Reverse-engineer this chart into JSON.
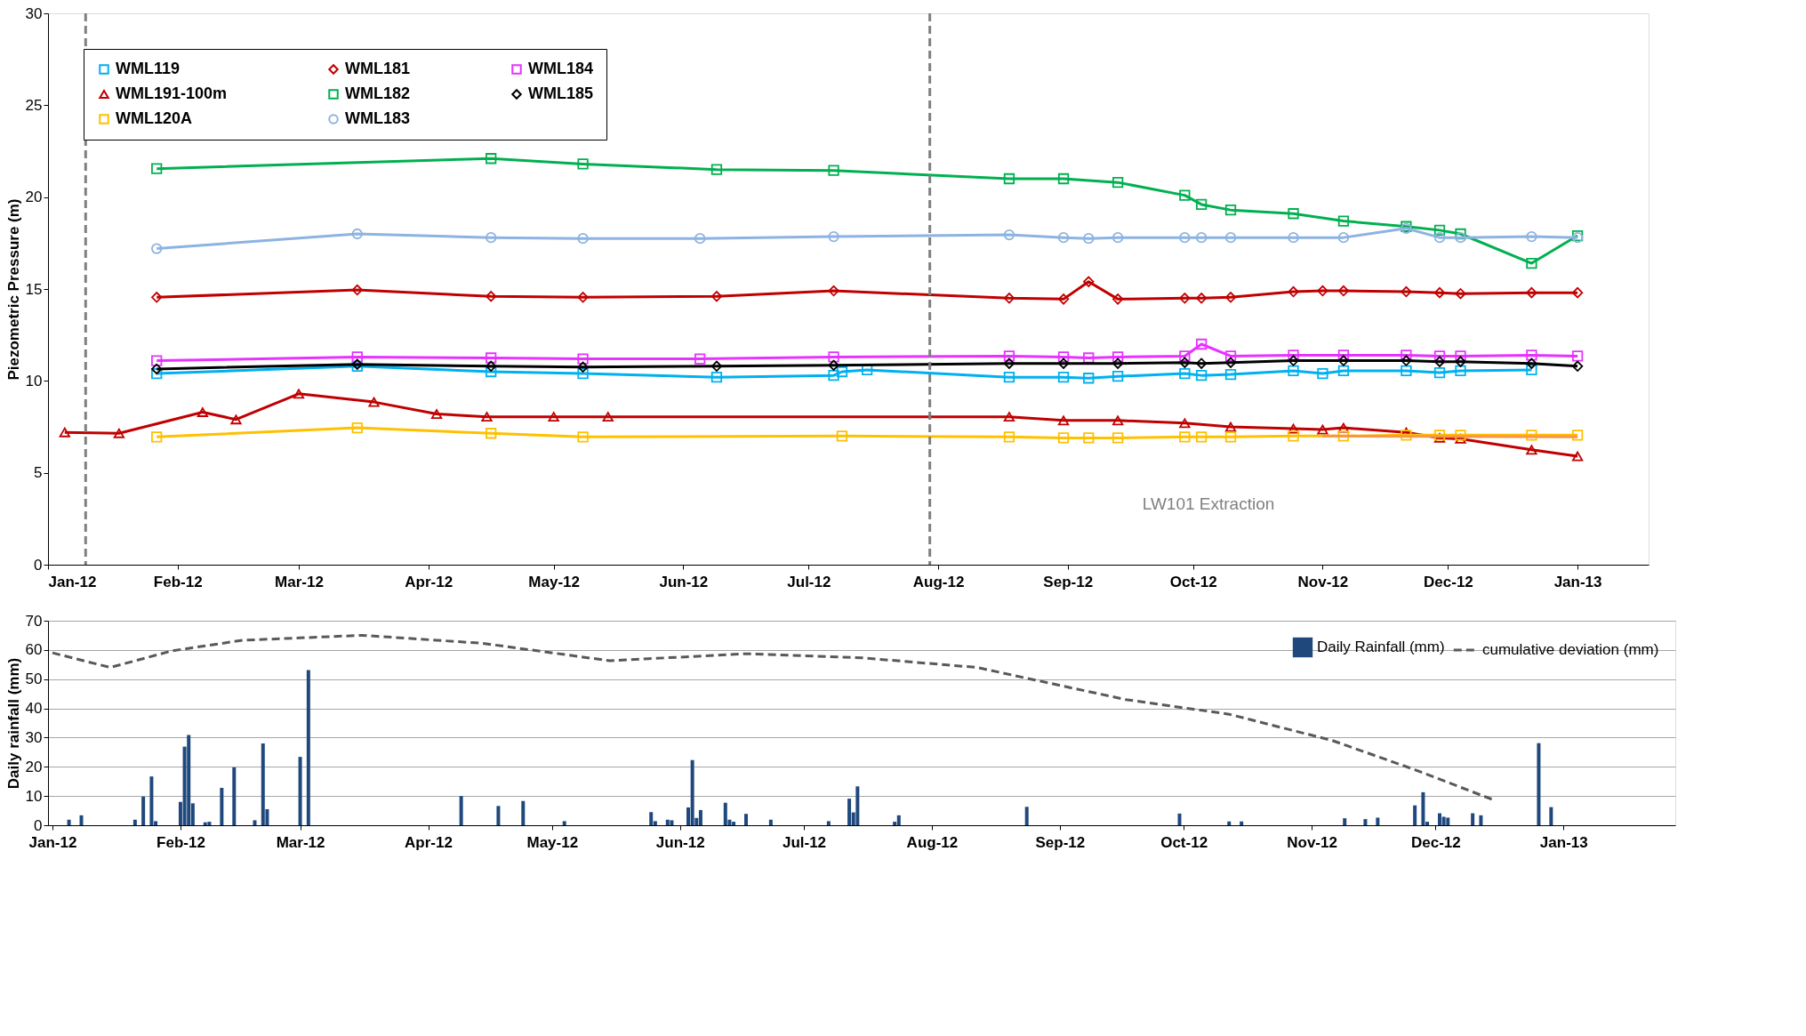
{
  "chart_data": [
    {
      "type": "line",
      "ylabel": "Piezometric Pressure (m)",
      "xlim": [
        "2012-01-01",
        "2013-01-18"
      ],
      "ylim": [
        0,
        30
      ],
      "yticks": [
        0,
        5,
        10,
        15,
        20,
        25,
        30
      ],
      "xticks": [
        {
          "value": "2012-01-01",
          "label": "Jan-12"
        },
        {
          "value": "2012-02-01",
          "label": "Feb-12"
        },
        {
          "value": "2012-03-01",
          "label": "Mar-12"
        },
        {
          "value": "2012-04-01",
          "label": "Apr-12"
        },
        {
          "value": "2012-05-01",
          "label": "May-12"
        },
        {
          "value": "2012-06-01",
          "label": "Jun-12"
        },
        {
          "value": "2012-07-01",
          "label": "Jul-12"
        },
        {
          "value": "2012-08-01",
          "label": "Aug-12"
        },
        {
          "value": "2012-09-01",
          "label": "Sep-12"
        },
        {
          "value": "2012-10-01",
          "label": "Oct-12"
        },
        {
          "value": "2012-11-01",
          "label": "Nov-12"
        },
        {
          "value": "2012-12-01",
          "label": "Dec-12"
        },
        {
          "value": "2013-01-01",
          "label": "Jan-13"
        }
      ],
      "grid": false,
      "legend": "top left",
      "line_style": "solid",
      "series": [
        {
          "name": "WML119",
          "color": "#00b0f0",
          "marker": "square",
          "x": [
            "2012-01-27",
            "2012-03-15",
            "2012-04-16",
            "2012-05-08",
            "2012-06-09",
            "2012-07-07",
            "2012-07-09",
            "2012-07-15",
            "2012-08-18",
            "2012-08-31",
            "2012-09-06",
            "2012-09-13",
            "2012-09-29",
            "2012-10-03",
            "2012-10-10",
            "2012-10-25",
            "2012-11-01",
            "2012-11-06",
            "2012-11-21",
            "2012-11-29",
            "2012-12-04",
            "2012-12-21"
          ],
          "values": [
            10.4,
            10.8,
            10.5,
            10.4,
            10.2,
            10.3,
            10.5,
            10.6,
            10.2,
            10.2,
            10.15,
            10.25,
            10.4,
            10.3,
            10.35,
            10.55,
            10.4,
            10.55,
            10.55,
            10.45,
            10.55,
            10.6
          ]
        },
        {
          "name": "WML191-100m",
          "color": "#c00000",
          "marker": "triangle",
          "x": [
            "2012-01-05",
            "2012-01-18",
            "2012-02-07",
            "2012-02-15",
            "2012-03-01",
            "2012-03-19",
            "2012-04-03",
            "2012-04-15",
            "2012-05-01",
            "2012-05-14",
            "2012-08-18",
            "2012-08-31",
            "2012-09-13",
            "2012-09-29",
            "2012-10-10",
            "2012-10-25",
            "2012-11-01",
            "2012-11-06",
            "2012-11-21",
            "2012-11-29",
            "2012-12-04",
            "2012-12-21",
            "2013-01-01"
          ],
          "values": [
            7.2,
            7.15,
            8.3,
            7.9,
            9.3,
            8.85,
            8.2,
            8.05,
            8.05,
            8.05,
            8.05,
            7.85,
            7.85,
            7.7,
            7.5,
            7.4,
            7.35,
            7.45,
            7.2,
            6.9,
            6.85,
            6.25,
            5.9
          ]
        },
        {
          "name": "WML120A",
          "color": "#ffc000",
          "marker": "square",
          "x": [
            "2012-01-27",
            "2012-03-15",
            "2012-04-16",
            "2012-05-08",
            "2012-07-09",
            "2012-08-18",
            "2012-08-31",
            "2012-09-06",
            "2012-09-13",
            "2012-09-29",
            "2012-10-03",
            "2012-10-10",
            "2012-10-25",
            "2012-11-06",
            "2012-11-21",
            "2012-11-29",
            "2012-12-04",
            "2012-12-21",
            "2013-01-01"
          ],
          "values": [
            6.95,
            7.45,
            7.15,
            6.95,
            7.0,
            6.95,
            6.9,
            6.9,
            6.9,
            6.95,
            6.95,
            6.95,
            7.0,
            7.0,
            7.05,
            7.05,
            7.05,
            7.05,
            7.05
          ]
        },
        {
          "name": "WML181",
          "color": "#c00000",
          "marker": "diamond",
          "x": [
            "2012-01-27",
            "2012-03-15",
            "2012-04-16",
            "2012-05-08",
            "2012-06-09",
            "2012-07-07",
            "2012-08-18",
            "2012-08-31",
            "2012-09-06",
            "2012-09-13",
            "2012-09-29",
            "2012-10-03",
            "2012-10-10",
            "2012-10-25",
            "2012-11-01",
            "2012-11-06",
            "2012-11-21",
            "2012-11-29",
            "2012-12-04",
            "2012-12-21",
            "2013-01-01"
          ],
          "values": [
            14.55,
            14.95,
            14.6,
            14.55,
            14.6,
            14.9,
            14.5,
            14.45,
            15.4,
            14.45,
            14.5,
            14.5,
            14.55,
            14.85,
            14.9,
            14.9,
            14.85,
            14.8,
            14.75,
            14.8,
            14.8
          ]
        },
        {
          "name": "WML182",
          "color": "#00b050",
          "marker": "square",
          "x": [
            "2012-01-27",
            "2012-04-16",
            "2012-05-08",
            "2012-06-09",
            "2012-07-07",
            "2012-08-18",
            "2012-08-31",
            "2012-09-13",
            "2012-09-29",
            "2012-10-03",
            "2012-10-10",
            "2012-10-25",
            "2012-11-06",
            "2012-11-21",
            "2012-11-29",
            "2012-12-04",
            "2012-12-21",
            "2013-01-01"
          ],
          "values": [
            21.55,
            22.1,
            21.8,
            21.5,
            21.45,
            21.0,
            21.0,
            20.8,
            20.1,
            19.6,
            19.3,
            19.1,
            18.7,
            18.4,
            18.2,
            18.0,
            16.4,
            17.9
          ]
        },
        {
          "name": "WML183",
          "color": "#8db3e2",
          "marker": "circle",
          "x": [
            "2012-01-27",
            "2012-03-15",
            "2012-04-16",
            "2012-05-08",
            "2012-06-05",
            "2012-07-07",
            "2012-08-18",
            "2012-08-31",
            "2012-09-06",
            "2012-09-13",
            "2012-09-29",
            "2012-10-03",
            "2012-10-10",
            "2012-10-25",
            "2012-11-06",
            "2012-11-21",
            "2012-11-29",
            "2012-12-04",
            "2012-12-21",
            "2013-01-01"
          ],
          "values": [
            17.2,
            18.0,
            17.8,
            17.75,
            17.75,
            17.85,
            17.95,
            17.8,
            17.75,
            17.8,
            17.8,
            17.8,
            17.8,
            17.8,
            17.8,
            18.3,
            17.8,
            17.8,
            17.85,
            17.8
          ]
        },
        {
          "name": "WML184",
          "color": "#e633ff",
          "marker": "square",
          "x": [
            "2012-01-27",
            "2012-03-15",
            "2012-04-16",
            "2012-05-08",
            "2012-06-05",
            "2012-07-07",
            "2012-08-18",
            "2012-08-31",
            "2012-09-06",
            "2012-09-13",
            "2012-09-29",
            "2012-10-03",
            "2012-10-10",
            "2012-10-25",
            "2012-11-06",
            "2012-11-21",
            "2012-11-29",
            "2012-12-04",
            "2012-12-21",
            "2013-01-01"
          ],
          "values": [
            11.1,
            11.3,
            11.25,
            11.2,
            11.2,
            11.3,
            11.35,
            11.3,
            11.25,
            11.3,
            11.35,
            12.0,
            11.35,
            11.4,
            11.4,
            11.4,
            11.35,
            11.35,
            11.4,
            11.35
          ]
        },
        {
          "name": "WML185",
          "color": "#000000",
          "marker": "diamond",
          "x": [
            "2012-01-27",
            "2012-03-15",
            "2012-04-16",
            "2012-05-08",
            "2012-06-09",
            "2012-07-07",
            "2012-08-18",
            "2012-08-31",
            "2012-09-13",
            "2012-09-29",
            "2012-10-03",
            "2012-10-10",
            "2012-10-25",
            "2012-11-06",
            "2012-11-21",
            "2012-11-29",
            "2012-12-04",
            "2012-12-21",
            "2013-01-01"
          ],
          "values": [
            10.65,
            10.9,
            10.8,
            10.75,
            10.8,
            10.85,
            10.95,
            10.95,
            10.95,
            11.0,
            10.95,
            11.0,
            11.1,
            11.1,
            11.1,
            11.05,
            11.05,
            10.95,
            10.8
          ]
        },
        {
          "color": "#f79646",
          "marker": "none",
          "x": [
            "2012-11-01",
            "2013-01-01"
          ],
          "values": [
            7.0,
            6.95
          ]
        }
      ],
      "ref_lines": [
        {
          "axis": "x",
          "value": "2012-01-10",
          "color": "#808080",
          "line_style": "dashed"
        },
        {
          "axis": "x",
          "value": "2012-07-30",
          "color": "#808080",
          "line_style": "dashed"
        }
      ],
      "annotations": [
        "LW101 Extraction"
      ]
    },
    {
      "type": "bar",
      "ylabel": "Daily rainfall (mm)",
      "xlim": [
        "2012-01-01",
        "2013-01-27"
      ],
      "ylim": [
        0,
        70
      ],
      "yticks": [
        0,
        10,
        20,
        30,
        40,
        50,
        60,
        70
      ],
      "xticks": [
        {
          "value": "2012-01-01",
          "label": "Jan-12"
        },
        {
          "value": "2012-02-01",
          "label": "Feb-12"
        },
        {
          "value": "2012-03-01",
          "label": "Mar-12"
        },
        {
          "value": "2012-04-01",
          "label": "Apr-12"
        },
        {
          "value": "2012-05-01",
          "label": "May-12"
        },
        {
          "value": "2012-06-01",
          "label": "Jun-12"
        },
        {
          "value": "2012-07-01",
          "label": "Jul-12"
        },
        {
          "value": "2012-08-01",
          "label": "Aug-12"
        },
        {
          "value": "2012-09-01",
          "label": "Sep-12"
        },
        {
          "value": "2012-10-01",
          "label": "Oct-12"
        },
        {
          "value": "2012-11-01",
          "label": "Nov-12"
        },
        {
          "value": "2012-12-01",
          "label": "Dec-12"
        },
        {
          "value": "2013-01-01",
          "label": "Jan-13"
        }
      ],
      "grid": "y",
      "legend": "top right",
      "series": [
        {
          "name": "Daily Rainfall (mm)",
          "color": "#1f497d",
          "x": [
            "2012-01-05",
            "2012-01-08",
            "2012-01-21",
            "2012-01-23",
            "2012-01-25",
            "2012-01-26",
            "2012-02-01",
            "2012-02-02",
            "2012-02-03",
            "2012-02-04",
            "2012-02-07",
            "2012-02-08",
            "2012-02-11",
            "2012-02-14",
            "2012-02-19",
            "2012-02-21",
            "2012-02-22",
            "2012-03-01",
            "2012-03-03",
            "2012-04-09",
            "2012-04-18",
            "2012-04-24",
            "2012-05-04",
            "2012-05-25",
            "2012-05-26",
            "2012-05-29",
            "2012-05-30",
            "2012-06-03",
            "2012-06-04",
            "2012-06-05",
            "2012-06-06",
            "2012-06-12",
            "2012-06-13",
            "2012-06-14",
            "2012-06-17",
            "2012-06-23",
            "2012-07-07",
            "2012-07-12",
            "2012-07-13",
            "2012-07-14",
            "2012-07-23",
            "2012-07-24",
            "2012-08-24",
            "2012-09-30",
            "2012-10-12",
            "2012-10-15",
            "2012-11-09",
            "2012-11-14",
            "2012-11-17",
            "2012-11-26",
            "2012-11-28",
            "2012-11-29",
            "2012-12-02",
            "2012-12-03",
            "2012-12-04",
            "2012-12-10",
            "2012-12-12",
            "2012-12-26",
            "2012-12-29"
          ],
          "values": [
            1.9,
            3.4,
            1.9,
            9.8,
            16.7,
            1.4,
            8.0,
            26.9,
            30.9,
            7.5,
            1.0,
            1.2,
            12.8,
            19.8,
            1.7,
            28.0,
            5.5,
            23.4,
            53.1,
            10.0,
            6.6,
            8.3,
            1.4,
            4.5,
            1.4,
            1.9,
            1.7,
            6.1,
            22.3,
            2.5,
            5.2,
            7.7,
            1.9,
            1.2,
            3.9,
            1.9,
            1.4,
            9.1,
            4.4,
            13.3,
            1.2,
            3.4,
            6.3,
            4.0,
            1.3,
            1.3,
            2.4,
            2.1,
            2.6,
            6.8,
            11.3,
            1.2,
            4.1,
            2.9,
            2.6,
            4.1,
            3.4,
            28.1,
            6.2
          ]
        },
        {
          "name": "cumulative deviation (mm)",
          "type": "line",
          "line_style": "dashed",
          "color": "#595959",
          "x": [
            "2012-01-01",
            "2012-01-15",
            "2012-01-30",
            "2012-02-16",
            "2012-03-16",
            "2012-04-14",
            "2012-05-15",
            "2012-06-17",
            "2012-07-15",
            "2012-08-12",
            "2012-08-26",
            "2012-09-17",
            "2012-10-12",
            "2012-11-06",
            "2012-11-26",
            "2012-12-15"
          ],
          "values": [
            59,
            54,
            59.7,
            63.3,
            65,
            62.3,
            56.3,
            58.7,
            57.3,
            54,
            49.7,
            43,
            38,
            29,
            19,
            8.7
          ]
        }
      ]
    }
  ]
}
